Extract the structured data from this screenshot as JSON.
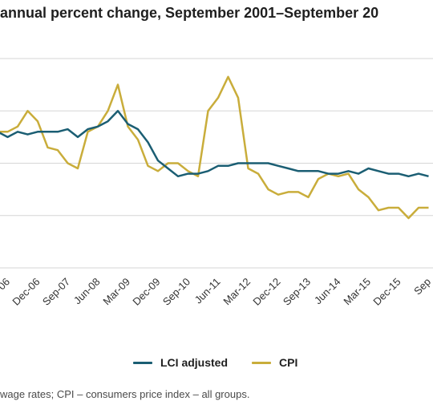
{
  "title": "annual percent change, September 2001–September 20",
  "note": "wage rates; CPI – consumers price index – all groups.",
  "colors": {
    "lci": "#1b5e73",
    "cpi": "#c9ad3b",
    "grid": "#d6d6d6"
  },
  "chart_data": {
    "type": "line",
    "title": "annual percent change, September 2001–September 20",
    "xlabel": "",
    "ylabel": "",
    "grid": true,
    "legend": "bottom-center",
    "ylim": [
      0,
      4
    ],
    "x_tick_labels": [
      "06",
      "Dec-06",
      "Sep-07",
      "Jun-08",
      "Mar-09",
      "Dec-09",
      "Sep-10",
      "Jun-11",
      "Mar-12",
      "Dec-12",
      "Sep-13",
      "Jun-14",
      "Mar-15",
      "Dec-15",
      "Sep"
    ],
    "series": [
      {
        "name": "LCI adjusted",
        "values": [
          2.6,
          2.5,
          2.6,
          2.55,
          2.6,
          2.6,
          2.6,
          2.65,
          2.5,
          2.65,
          2.7,
          2.8,
          3.0,
          2.75,
          2.65,
          2.4,
          2.05,
          1.9,
          1.75,
          1.8,
          1.8,
          1.85,
          1.95,
          1.95,
          2.0,
          2.0,
          2.0,
          2.0,
          1.95,
          1.9,
          1.85,
          1.85,
          1.85,
          1.8,
          1.8,
          1.85,
          1.8,
          1.9,
          1.85,
          1.8,
          1.8,
          1.75,
          1.8,
          1.75
        ]
      },
      {
        "name": "CPI",
        "values": [
          2.6,
          2.6,
          2.7,
          3.0,
          2.8,
          2.3,
          2.25,
          2.0,
          1.9,
          2.6,
          2.7,
          3.0,
          3.5,
          2.7,
          2.45,
          1.95,
          1.85,
          2.0,
          2.0,
          1.85,
          1.75,
          3.0,
          3.25,
          3.65,
          3.25,
          1.9,
          1.8,
          1.5,
          1.4,
          1.45,
          1.45,
          1.35,
          1.7,
          1.8,
          1.75,
          1.8,
          1.5,
          1.35,
          1.1,
          1.15,
          1.15,
          0.95,
          1.15,
          1.15
        ]
      }
    ]
  }
}
